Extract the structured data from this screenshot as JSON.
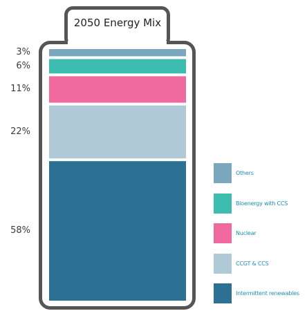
{
  "chart_data": {
    "type": "bar",
    "stacked": true,
    "title": "2050 Energy Mix",
    "categories": [
      "Others",
      "Bioenergy with CCS",
      "Nuclear",
      "CCGT & CCS",
      "Intermittent renewables"
    ],
    "values": [
      3,
      6,
      11,
      22,
      58
    ],
    "value_labels": [
      "3%",
      "6%",
      "11%",
      "22%",
      "58%"
    ],
    "unit": "%",
    "colors": [
      "#7ba7be",
      "#3dbdb0",
      "#f06aa0",
      "#afc9d6",
      "#2c7094"
    ],
    "legend_position": "right"
  }
}
